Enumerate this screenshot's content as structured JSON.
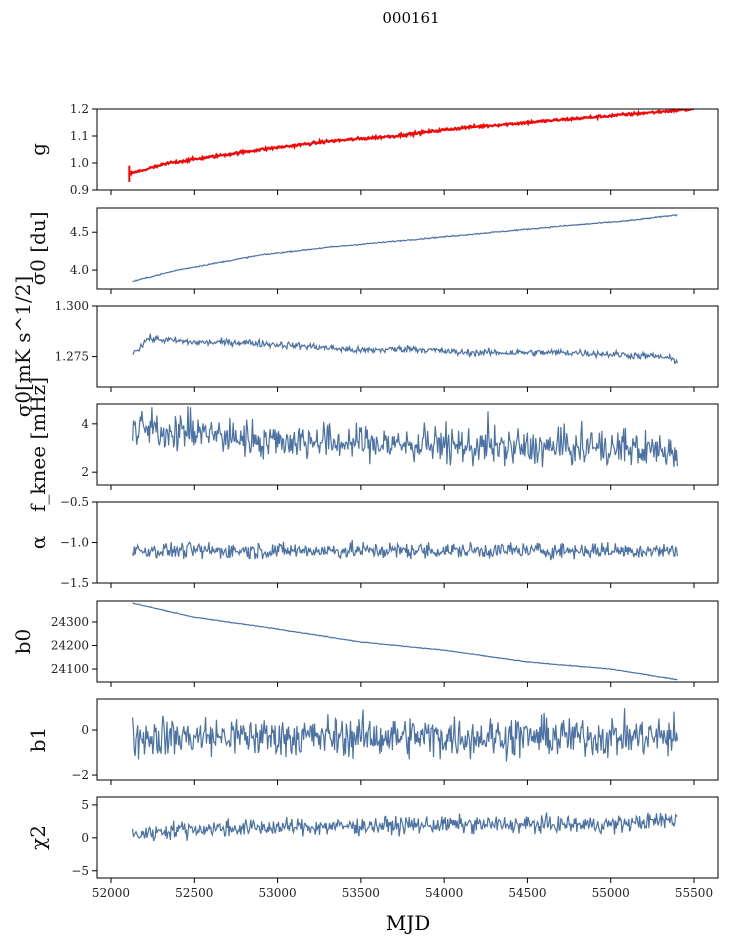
{
  "chart_data": {
    "type": "line",
    "title": "000161",
    "xlabel": "MJD",
    "xlim": [
      51916,
      55644
    ],
    "xticks": [
      52000,
      52500,
      53000,
      53500,
      54000,
      54500,
      55000,
      55500
    ],
    "line_color": "#4c72a4",
    "panels": [
      {
        "ylabel": "g",
        "ylim": [
          0.9,
          1.2
        ],
        "yticks": [
          "0.9",
          "1.0",
          "1.1",
          "1.2"
        ],
        "series": [
          {
            "name": "g",
            "color": "#4c72a4",
            "noise": 0.002,
            "x": [
              52130,
              52350,
              52900,
              53300,
              53700,
              54100,
              54400,
              54800,
              55100,
              55400
            ],
            "y": [
              0.96,
              1.0,
              1.05,
              1.08,
              1.1,
              1.13,
              1.145,
              1.165,
              1.18,
              1.195
            ]
          },
          {
            "name": "g_reference",
            "color": "#ff0000",
            "noise": 0.003,
            "x": [
              52110,
              52350,
              52900,
              53300,
              53700,
              54100,
              54400,
              54800,
              55100,
              55500
            ],
            "y": [
              0.96,
              1.0,
              1.05,
              1.08,
              1.1,
              1.13,
              1.145,
              1.165,
              1.18,
              1.2
            ]
          }
        ]
      },
      {
        "ylabel": "σ0 [du]",
        "ylim": [
          3.75,
          4.82
        ],
        "yticks": [
          "4.0",
          "4.5"
        ],
        "series": [
          {
            "name": "sigma0_du",
            "color": "#4c72a4",
            "noise": 0.004,
            "x": [
              52130,
              52400,
              52900,
              53300,
              53800,
              54300,
              54700,
              55100,
              55400
            ],
            "y": [
              3.85,
              4.0,
              4.2,
              4.3,
              4.4,
              4.5,
              4.58,
              4.65,
              4.73
            ]
          }
        ]
      },
      {
        "ylabel": "σ0[mK s^1/2]",
        "ylim": [
          1.26,
          1.3
        ],
        "yticks": [
          "1.275",
          "1.300"
        ],
        "series": [
          {
            "name": "sigma0_mK",
            "color": "#4c72a4",
            "noise": 0.0009,
            "x": [
              52130,
              52180,
              52220,
              52500,
              52800,
              53200,
              53500,
              53800,
              54100,
              54500,
              54800,
              55300,
              55400
            ],
            "y": [
              1.277,
              1.28,
              1.284,
              1.282,
              1.282,
              1.28,
              1.278,
              1.279,
              1.277,
              1.277,
              1.277,
              1.275,
              1.273
            ]
          }
        ]
      },
      {
        "ylabel": "f_knee [mHz]",
        "ylim": [
          1.47,
          4.82
        ],
        "yticks": [
          "2",
          "4"
        ],
        "series": [
          {
            "name": "fknee",
            "color": "#4c72a4",
            "noise": 0.38,
            "x": [
              52130,
              52500,
              53000,
              53500,
              54000,
              54500,
              55000,
              55400
            ],
            "y": [
              3.8,
              3.6,
              3.3,
              3.2,
              3.1,
              3.0,
              3.0,
              2.9
            ]
          }
        ]
      },
      {
        "ylabel": "α",
        "ylim": [
          -1.5,
          -0.5
        ],
        "yticks": [
          "−1.5",
          "−1.0",
          "−0.5"
        ],
        "series": [
          {
            "name": "alpha",
            "color": "#4c72a4",
            "noise": 0.05,
            "x": [
              52130,
              55400
            ],
            "y": [
              -1.1,
              -1.1
            ]
          }
        ]
      },
      {
        "ylabel": "b0",
        "ylim": [
          24045,
          24389
        ],
        "yticks": [
          "24100",
          "24200",
          "24300"
        ],
        "series": [
          {
            "name": "b0",
            "color": "#4c72a4",
            "noise": 0.8,
            "x": [
              52130,
              52500,
              53000,
              53500,
              54000,
              54500,
              55000,
              55400
            ],
            "y": [
              24380,
              24320,
              24270,
              24215,
              24180,
              24130,
              24100,
              24055
            ]
          }
        ]
      },
      {
        "ylabel": "b1",
        "ylim": [
          -2.22,
          1.38
        ],
        "yticks": [
          "−2",
          "0"
        ],
        "series": [
          {
            "name": "b1",
            "color": "#4c72a4",
            "noise": 0.45,
            "x": [
              52130,
              55400
            ],
            "y": [
              -0.3,
              -0.3
            ]
          }
        ]
      },
      {
        "ylabel": "χ2",
        "ylim": [
          -6.1,
          6.2
        ],
        "yticks": [
          "−5",
          "0",
          "5"
        ],
        "series": [
          {
            "name": "chi2",
            "color": "#4c72a4",
            "noise": 0.65,
            "x": [
              52130,
              52400,
              53000,
              54000,
              55000,
              55400
            ],
            "y": [
              0.4,
              1.3,
              1.6,
              2.0,
              2.0,
              2.8
            ]
          }
        ]
      }
    ]
  }
}
